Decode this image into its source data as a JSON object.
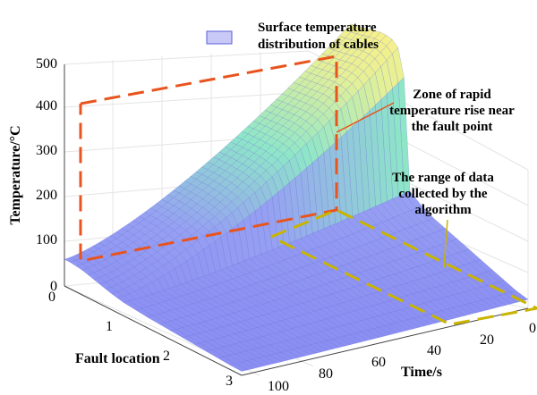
{
  "chart_data": {
    "type": "surface",
    "title": "",
    "legend": {
      "label": "Surface temperature distribution of cables",
      "lines": [
        "Surface temperature",
        "distribution of cables"
      ],
      "placement": "top"
    },
    "axes": {
      "x": {
        "label": "Fault location",
        "ticks": [
          "0",
          "1",
          "2",
          "3"
        ],
        "range": [
          0,
          3
        ]
      },
      "y": {
        "label": "Time/s",
        "ticks": [
          "0",
          "20",
          "40",
          "60",
          "80",
          "100"
        ],
        "range": [
          0,
          100
        ]
      },
      "z": {
        "label": "Temperature/°C",
        "ticks": [
          "0",
          "100",
          "200",
          "300",
          "400",
          "500"
        ],
        "range": [
          0,
          500
        ]
      }
    },
    "surface": {
      "fault_location_values": [
        0.0,
        0.1,
        0.2,
        0.3,
        0.4,
        0.5,
        0.6,
        0.7,
        0.8,
        0.9,
        1.0,
        1.2,
        1.4,
        1.6,
        1.8,
        2.0,
        2.2,
        2.4,
        2.6,
        2.8,
        3.0
      ],
      "temperature_at_time_0": [
        60,
        60,
        58,
        56,
        52,
        48,
        44,
        40,
        36,
        33,
        30,
        27,
        24,
        22,
        20,
        18,
        16,
        14,
        12,
        10,
        9
      ],
      "temperature_at_time_100": [
        440,
        442,
        445,
        448,
        452,
        455,
        455,
        452,
        440,
        380,
        130,
        110,
        96,
        86,
        76,
        66,
        56,
        46,
        36,
        26,
        20
      ]
    },
    "grid": true,
    "colors": {
      "high": "#f7f08a",
      "mid": "#8ee6c8",
      "low": "#8a8df2",
      "mesh": "#5a5fd6"
    }
  },
  "annotations": [
    {
      "id": "rapid-rise",
      "lines": [
        "Zone of rapid",
        "temperature rise near",
        "the fault point"
      ],
      "box_color": "#e8541e"
    },
    {
      "id": "data-range",
      "lines": [
        "The range of data",
        "collected by the",
        "algorithm"
      ],
      "box_color": "#c9b400"
    }
  ]
}
